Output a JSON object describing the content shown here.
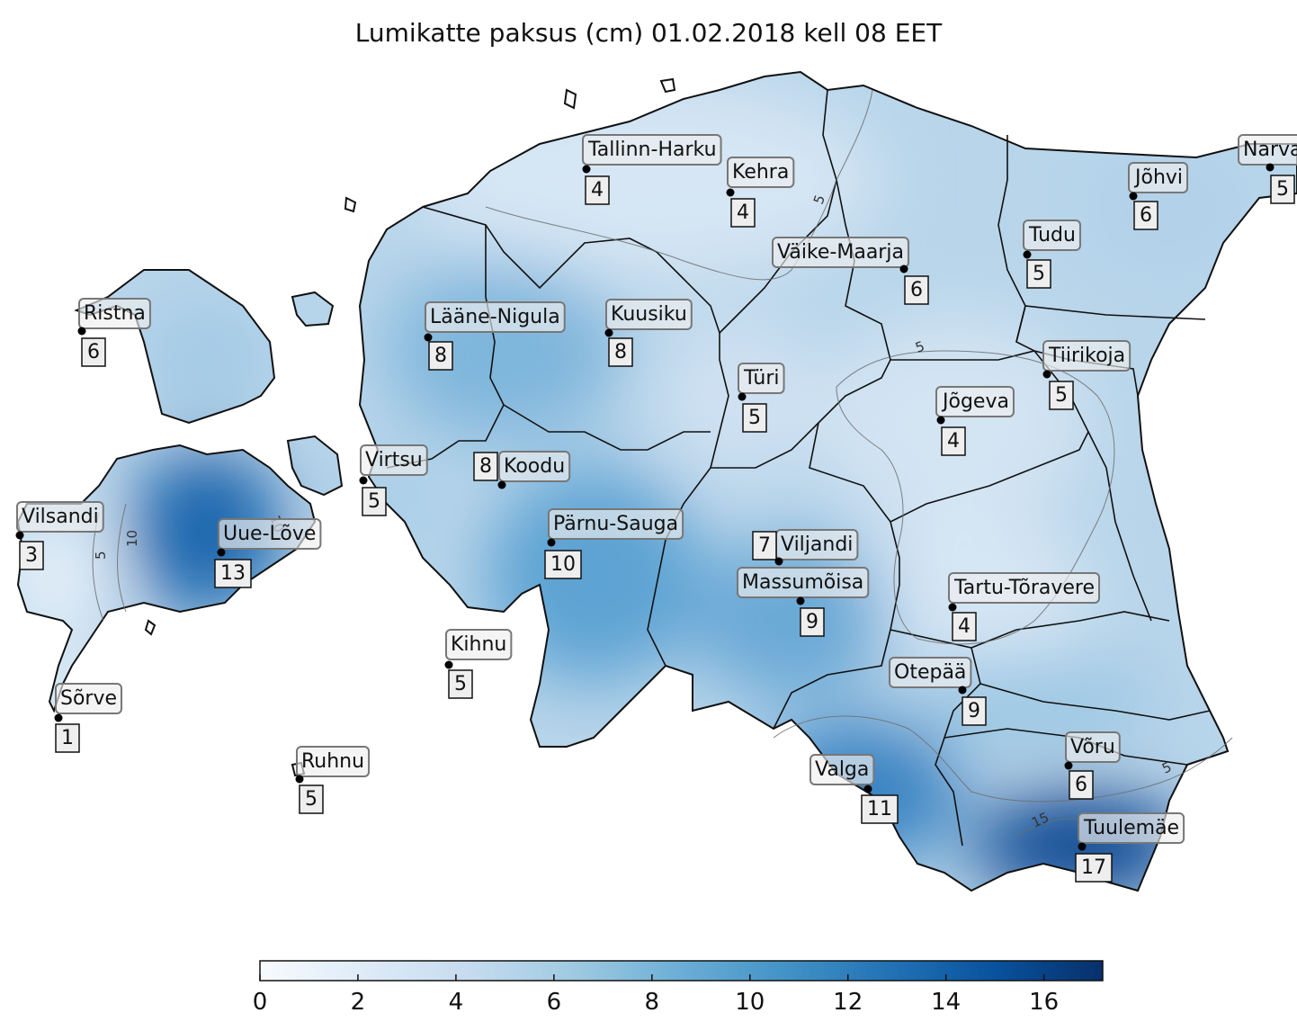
{
  "title": "Lumikatte paksus (cm) 01.02.2018 kell 08 EET",
  "colormap": {
    "name": "Blues",
    "min": 0,
    "max": 17.2,
    "stops": [
      "#f7fbff",
      "#deebf7",
      "#c6dbef",
      "#9ecae1",
      "#6baed6",
      "#4292c6",
      "#2171b5",
      "#08519c",
      "#08306b"
    ],
    "ticks": [
      "0",
      "2",
      "4",
      "6",
      "8",
      "10",
      "12",
      "14",
      "16"
    ]
  },
  "contour_labels": [
    "5",
    "5",
    "10",
    "5",
    "10",
    "15",
    "5"
  ],
  "stations": [
    {
      "name": "Tallinn-Harku",
      "value": "4"
    },
    {
      "name": "Kehra",
      "value": "4"
    },
    {
      "name": "Narva",
      "value": "5"
    },
    {
      "name": "Jõhvi",
      "value": "6"
    },
    {
      "name": "Tudu",
      "value": "5"
    },
    {
      "name": "Väike-Maarja",
      "value": "6"
    },
    {
      "name": "Ristna",
      "value": "6"
    },
    {
      "name": "Lääne-Nigula",
      "value": "8"
    },
    {
      "name": "Kuusiku",
      "value": "8"
    },
    {
      "name": "Tiirikoja",
      "value": "5"
    },
    {
      "name": "Türi",
      "value": "5"
    },
    {
      "name": "Jõgeva",
      "value": "4"
    },
    {
      "name": "Virtsu",
      "value": "5"
    },
    {
      "name": "Koodu",
      "value": "8"
    },
    {
      "name": "Vilsandi",
      "value": "3"
    },
    {
      "name": "Uue-Lõve",
      "value": "13"
    },
    {
      "name": "Pärnu-Sauga",
      "value": "10"
    },
    {
      "name": "Viljandi",
      "value": "7"
    },
    {
      "name": "Massumõisa",
      "value": "9"
    },
    {
      "name": "Tartu-Tõravere",
      "value": "4"
    },
    {
      "name": "Kihnu",
      "value": "5"
    },
    {
      "name": "Otepää",
      "value": "9"
    },
    {
      "name": "Sõrve",
      "value": "1"
    },
    {
      "name": "Ruhnu",
      "value": "5"
    },
    {
      "name": "Võru",
      "value": "6"
    },
    {
      "name": "Valga",
      "value": "11"
    },
    {
      "name": "Tuulemäe",
      "value": "17"
    }
  ]
}
